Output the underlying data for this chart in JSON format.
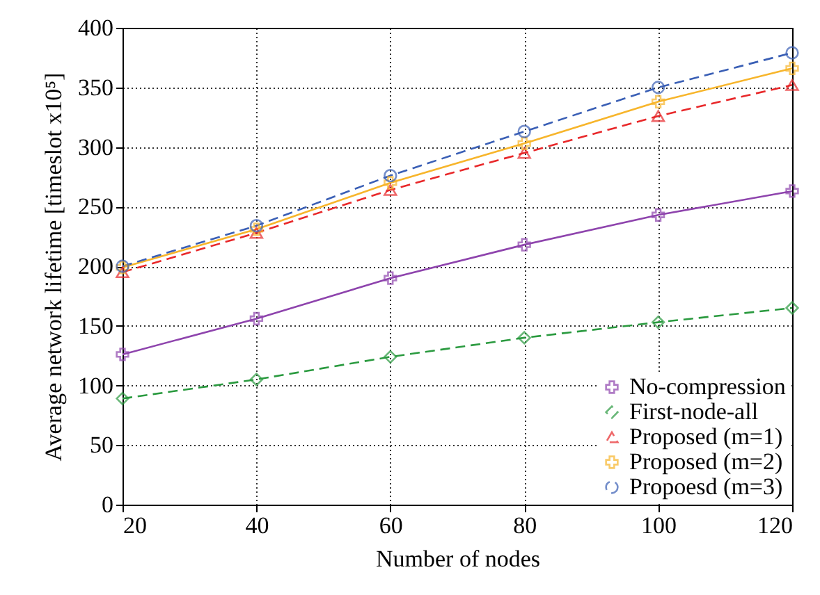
{
  "chart_data": {
    "type": "line",
    "xlabel": "Number of nodes",
    "ylabel": "Average network lifetime [timeslot x10⁵]",
    "x": [
      20,
      40,
      60,
      80,
      100,
      120
    ],
    "series": [
      {
        "name": "No-compression",
        "color": "#8e44ad",
        "marker": "cross",
        "line_style": "solid",
        "values": [
          126,
          156,
          190,
          218,
          243,
          263
        ]
      },
      {
        "name": "First-node-all",
        "color": "#2a9a3f",
        "marker": "diamond",
        "line_style": "dashed",
        "values": [
          89,
          105,
          124,
          140,
          153,
          165
        ]
      },
      {
        "name": "Proposed (m=1)",
        "color": "#e8282a",
        "marker": "triangle",
        "line_style": "dashed",
        "values": [
          195,
          228,
          264,
          295,
          326,
          352
        ]
      },
      {
        "name": "Proposed (m=2)",
        "color": "#f7b52b",
        "marker": "cross",
        "line_style": "solid",
        "values": [
          199,
          231,
          270,
          303,
          338,
          366
        ]
      },
      {
        "name": "Propoesd (m=3)",
        "color": "#3a5fb5",
        "marker": "circle",
        "line_style": "dashed",
        "values": [
          200,
          234,
          276,
          313,
          350,
          379
        ]
      }
    ],
    "xlim": [
      20,
      120
    ],
    "xticks": [
      20,
      40,
      60,
      80,
      100,
      120
    ],
    "ylim": [
      0,
      400
    ],
    "yticks": [
      0,
      50,
      100,
      150,
      200,
      250,
      300,
      350,
      400
    ],
    "grid": true,
    "legend": "bottom right"
  }
}
